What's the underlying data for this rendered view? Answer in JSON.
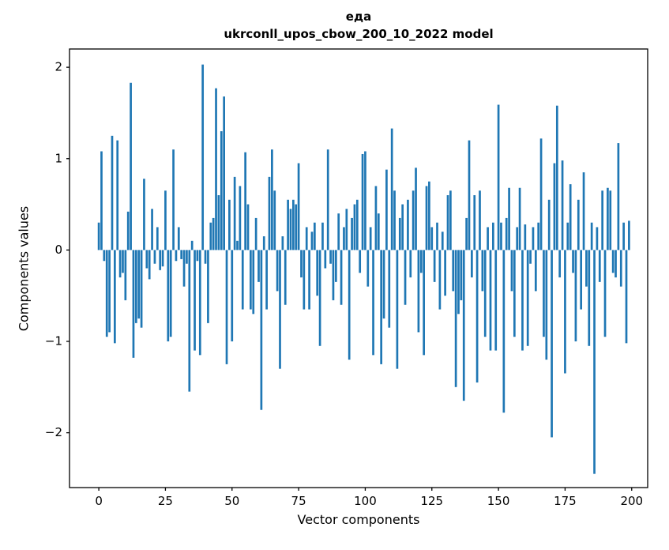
{
  "chart_data": {
    "type": "bar",
    "title": "еда",
    "subtitle": "ukrconll_upos_cbow_200_10_2022 model",
    "xlabel": "Vector components",
    "ylabel": "Components values",
    "bar_color": "#1f77b4",
    "axis_color": "#000000",
    "xlim": [
      -11,
      206
    ],
    "ylim": [
      -2.6,
      2.2
    ],
    "xticks": {
      "values": [
        0,
        25,
        50,
        75,
        100,
        125,
        150,
        175,
        200
      ],
      "labels": [
        "0",
        "25",
        "50",
        "75",
        "100",
        "125",
        "150",
        "175",
        "200"
      ]
    },
    "yticks": {
      "values": [
        -2,
        -1,
        0,
        1,
        2
      ],
      "labels": [
        "−2",
        "−1",
        "0",
        "1",
        "2"
      ]
    },
    "x_start": 0,
    "values": [
      0.3,
      1.08,
      -0.12,
      -0.95,
      -0.9,
      1.25,
      -1.02,
      1.2,
      -0.3,
      -0.25,
      -0.55,
      0.42,
      1.83,
      -1.18,
      -0.8,
      -0.75,
      -0.85,
      0.78,
      -0.2,
      -0.32,
      0.45,
      -0.15,
      0.25,
      -0.22,
      -0.18,
      0.65,
      -1.0,
      -0.95,
      1.1,
      -0.12,
      0.25,
      -0.1,
      -0.4,
      -0.15,
      -1.55,
      0.1,
      -1.1,
      -0.12,
      -1.15,
      2.03,
      -0.15,
      -0.8,
      0.3,
      0.35,
      1.77,
      0.6,
      1.3,
      1.68,
      -1.25,
      0.55,
      -1.0,
      0.8,
      0.1,
      0.7,
      -0.65,
      1.07,
      0.5,
      -0.65,
      -0.7,
      0.35,
      -0.35,
      -1.75,
      0.15,
      -0.65,
      0.8,
      1.1,
      0.65,
      -0.45,
      -1.3,
      0.15,
      -0.6,
      0.55,
      0.45,
      0.55,
      0.5,
      0.95,
      -0.3,
      -0.65,
      0.25,
      -0.65,
      0.2,
      0.3,
      -0.5,
      -1.05,
      0.3,
      -0.2,
      1.1,
      -0.15,
      -0.55,
      -0.35,
      0.4,
      -0.6,
      0.25,
      0.45,
      -1.2,
      0.35,
      0.5,
      0.55,
      -0.25,
      1.05,
      1.08,
      -0.4,
      0.25,
      -1.15,
      0.7,
      0.4,
      -1.25,
      -0.75,
      0.88,
      -0.85,
      1.33,
      0.65,
      -1.3,
      0.35,
      0.5,
      -0.6,
      0.55,
      -0.3,
      0.65,
      0.9,
      -0.9,
      -0.25,
      -1.15,
      0.7,
      0.75,
      0.25,
      -0.35,
      0.3,
      -0.65,
      0.2,
      -0.5,
      0.6,
      0.65,
      -0.45,
      -1.5,
      -0.7,
      -0.55,
      -1.65,
      0.35,
      1.2,
      -0.3,
      0.6,
      -1.45,
      0.65,
      -0.45,
      -0.95,
      0.25,
      -1.1,
      0.3,
      -1.1,
      1.59,
      0.3,
      -1.78,
      0.35,
      0.68,
      -0.45,
      -0.95,
      0.25,
      0.68,
      -1.1,
      0.28,
      -1.05,
      -0.15,
      0.25,
      -0.45,
      0.3,
      1.22,
      -0.95,
      -1.2,
      0.55,
      -2.05,
      0.95,
      1.58,
      -0.3,
      0.98,
      -1.35,
      0.3,
      0.72,
      -0.25,
      -1.0,
      0.55,
      -0.65,
      0.85,
      -0.4,
      -1.05,
      0.3,
      -2.45,
      0.25,
      -0.35,
      0.65,
      -0.95,
      0.68,
      0.65,
      -0.25,
      -0.3,
      1.17,
      -0.4,
      0.3,
      -1.02,
      0.32
    ]
  }
}
